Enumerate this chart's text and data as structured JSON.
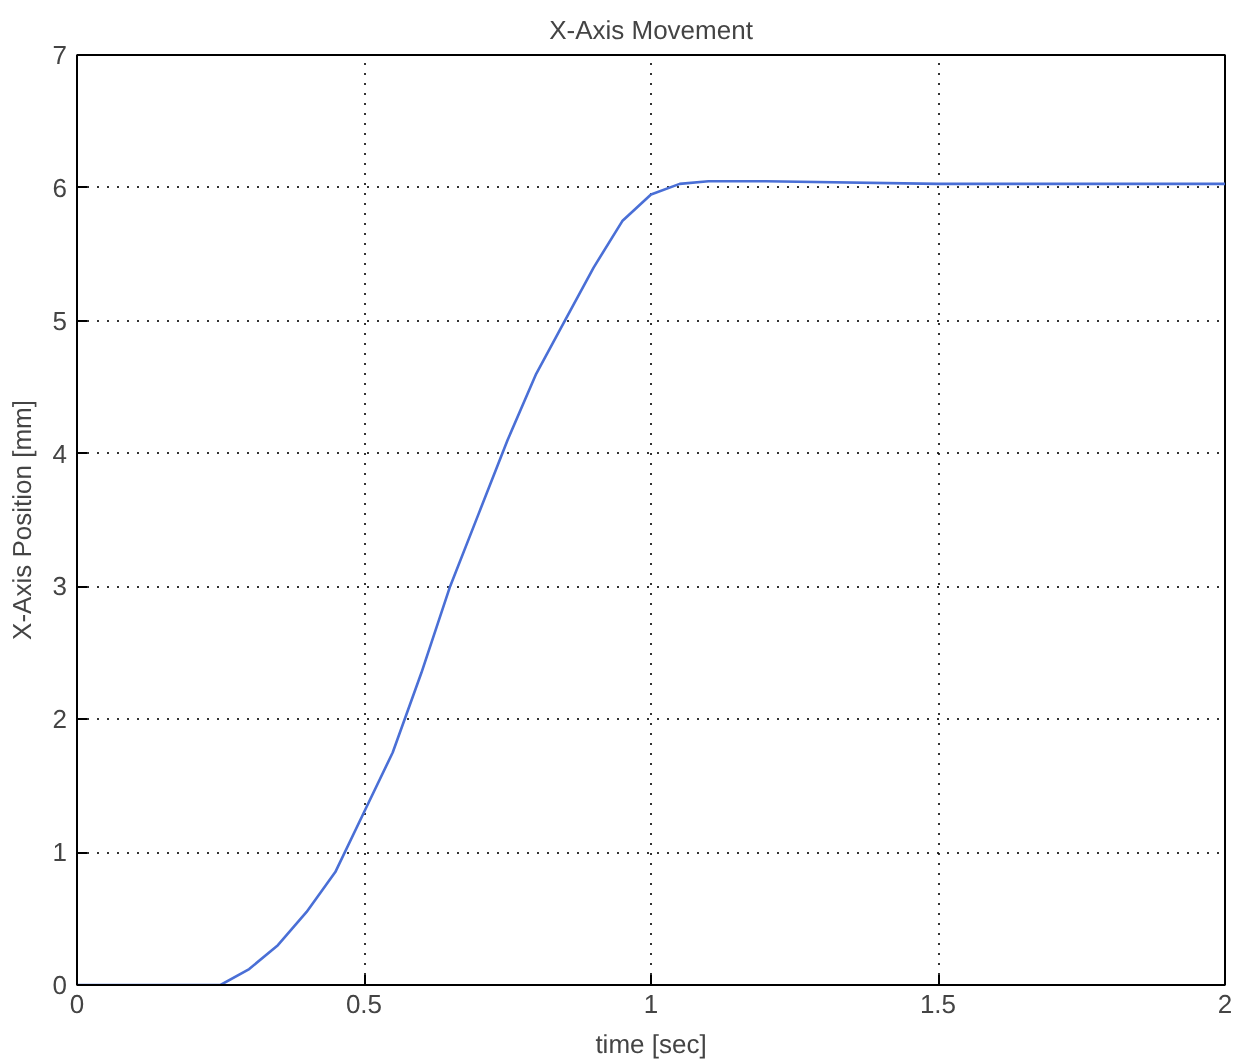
{
  "chart_data": {
    "type": "line",
    "title": "X-Axis Movement",
    "xlabel": "time [sec]",
    "ylabel": "X-Axis Position [mm]",
    "x": [
      0,
      0.25,
      0.3,
      0.35,
      0.4,
      0.45,
      0.5,
      0.55,
      0.6,
      0.65,
      0.7,
      0.75,
      0.8,
      0.85,
      0.9,
      0.95,
      1.0,
      1.05,
      1.1,
      1.2,
      1.5,
      2.0
    ],
    "series": [
      {
        "color": "#4a6fd6",
        "values": [
          0,
          0,
          0.12,
          0.3,
          0.55,
          0.85,
          1.3,
          1.75,
          2.35,
          3.0,
          3.55,
          4.1,
          4.6,
          5.0,
          5.4,
          5.75,
          5.95,
          6.03,
          6.05,
          6.05,
          6.03,
          6.03
        ]
      }
    ],
    "xlim": [
      0,
      2
    ],
    "ylim": [
      0,
      7
    ],
    "xticks": [
      0,
      0.5,
      1,
      1.5,
      2
    ],
    "yticks": [
      0,
      1,
      2,
      3,
      4,
      5,
      6,
      7
    ],
    "grid": true,
    "line_style": "solid"
  }
}
